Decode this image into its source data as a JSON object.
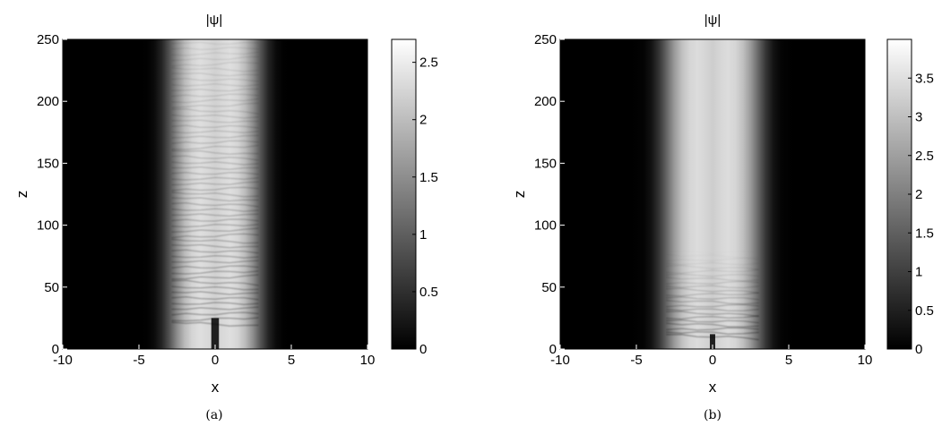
{
  "chart_data": [
    {
      "type": "heatmap",
      "title": "|ψ|",
      "xlabel": "x",
      "ylabel": "z",
      "xlim": [
        -10,
        10
      ],
      "ylim": [
        0,
        250
      ],
      "xticks": [
        "-10",
        "-5",
        "0",
        "5",
        "10"
      ],
      "yticks": [
        "0",
        "50",
        "100",
        "150",
        "200",
        "250"
      ],
      "colorbar": {
        "range": [
          0,
          2.7
        ],
        "ticks": [
          "0",
          "0.5",
          "1",
          "1.5",
          "2",
          "2.5"
        ],
        "colormap": "gray"
      },
      "caption": "(a)",
      "beam": {
        "center_x": 0,
        "half_width": 3.0,
        "peak": 2.4,
        "oscillation_from_z": 20,
        "dark_stripe_until_z": 25
      }
    },
    {
      "type": "heatmap",
      "title": "|ψ|",
      "xlabel": "x",
      "ylabel": "z",
      "xlim": [
        -10,
        10
      ],
      "ylim": [
        0,
        250
      ],
      "xticks": [
        "-10",
        "-5",
        "0",
        "5",
        "10"
      ],
      "yticks": [
        "0",
        "50",
        "100",
        "150",
        "200",
        "250"
      ],
      "colorbar": {
        "range": [
          0,
          4.0
        ],
        "ticks": [
          "0",
          "0.5",
          "1",
          "1.5",
          "2",
          "2.5",
          "3",
          "3.5"
        ],
        "colormap": "gray"
      },
      "caption": "(b)",
      "beam": {
        "center_x": 0,
        "half_width": 3.2,
        "peak": 3.5,
        "oscillation_from_z": 10,
        "dark_stripe_until_z": 12
      }
    }
  ]
}
